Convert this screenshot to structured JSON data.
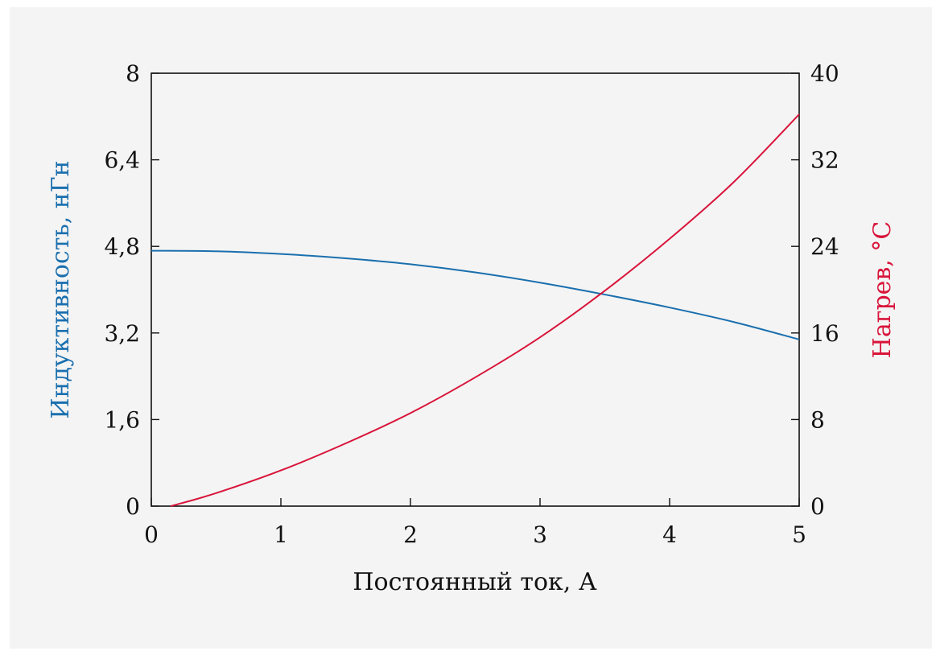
{
  "chart_data": {
    "type": "line",
    "xlabel": "Постоянный ток, А",
    "ylabel_left": "Индуктивность, нГн",
    "ylabel_right": "Нагрев, °С",
    "xlim": [
      0,
      5
    ],
    "ylim_left": [
      0,
      8
    ],
    "ylim_right": [
      0,
      40
    ],
    "x_ticks": [
      "0",
      "1",
      "2",
      "3",
      "4",
      "5"
    ],
    "y_left_ticks": [
      "0",
      "1,6",
      "3,2",
      "4,8",
      "6,4",
      "8"
    ],
    "y_right_ticks": [
      "0",
      "8",
      "16",
      "24",
      "32",
      "40"
    ],
    "grid": false,
    "colors": {
      "left": "#1a6fae",
      "right": "#d9143a"
    },
    "series": [
      {
        "axis": "left",
        "x": [
          0,
          0.5,
          1,
          1.5,
          2,
          2.5,
          3,
          3.5,
          4,
          4.5,
          5
        ],
        "values": [
          4.72,
          4.71,
          4.66,
          4.58,
          4.47,
          4.32,
          4.13,
          3.91,
          3.67,
          3.4,
          3.08
        ]
      },
      {
        "axis": "right",
        "x": [
          0.15,
          0.5,
          1,
          1.5,
          2,
          2.5,
          3,
          3.5,
          4,
          4.5,
          5
        ],
        "values": [
          0,
          1.2,
          3.3,
          5.8,
          8.6,
          11.9,
          15.6,
          19.9,
          24.7,
          30.0,
          36.2
        ]
      }
    ]
  }
}
